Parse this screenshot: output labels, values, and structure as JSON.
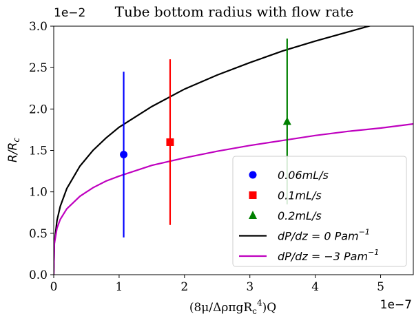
{
  "chart_data": {
    "type": "line",
    "title": "Tube bottom radius with flow rate",
    "xlabel": "(8μ/ΔρπgR_c^4)Q",
    "ylabel": "R/R_c",
    "x_exponent": "1e−7",
    "y_exponent": "1e−2",
    "x_scale": 1e-07,
    "y_scale": 0.01,
    "xlim": [
      0,
      5.5e-07
    ],
    "ylim": [
      0,
      0.03
    ],
    "x_ticks": [
      0,
      1e-07,
      2e-07,
      3e-07,
      4e-07,
      5e-07
    ],
    "x_tick_labels": [
      "0",
      "1",
      "2",
      "3",
      "4",
      "5"
    ],
    "y_ticks": [
      0,
      0.005,
      0.01,
      0.015,
      0.02,
      0.025,
      0.03
    ],
    "y_tick_labels": [
      "0.0",
      "0.5",
      "1.0",
      "1.5",
      "2.0",
      "2.5",
      "3.0"
    ],
    "grid": false,
    "legend_position": "lower-right",
    "series": [
      {
        "name": "0.06mL/s",
        "kind": "errorbar",
        "marker": "circle",
        "color": "#0000ff",
        "x": 1.07e-07,
        "y": 0.0145,
        "yerr_low": 0.0045,
        "yerr_high": 0.0245
      },
      {
        "name": "0.1mL/s",
        "kind": "errorbar",
        "marker": "square",
        "color": "#ff0000",
        "x": 1.78e-07,
        "y": 0.016,
        "yerr_low": 0.006,
        "yerr_high": 0.026
      },
      {
        "name": "0.2mL/s",
        "kind": "errorbar",
        "marker": "triangle",
        "color": "#008000",
        "x": 3.57e-07,
        "y": 0.0185,
        "yerr_low": 0.0085,
        "yerr_high": 0.0285
      },
      {
        "name": "dP/dz = 0 Pam⁻¹",
        "kind": "line",
        "color": "#000000",
        "x": [
          0,
          1e-09,
          5e-09,
          1e-08,
          2e-08,
          4e-08,
          6e-08,
          8e-08,
          1e-07,
          1.5e-07,
          2e-07,
          2.5e-07,
          3e-07,
          3.5e-07,
          4e-07,
          4.5e-07,
          5e-07,
          5.5e-07
        ],
        "y": [
          0,
          0.00383,
          0.00655,
          0.00825,
          0.0104,
          0.0131,
          0.015,
          0.0165,
          0.0178,
          0.0203,
          0.0224,
          0.0241,
          0.0256,
          0.027,
          0.0282,
          0.0293,
          0.0304,
          0.0314
        ]
      },
      {
        "name": "dP/dz = −3 Pam⁻¹",
        "kind": "line",
        "color": "#bf00bf",
        "x": [
          0,
          1e-09,
          5e-09,
          1e-08,
          2e-08,
          4e-08,
          6e-08,
          8e-08,
          1e-07,
          1.5e-07,
          2e-07,
          2.5e-07,
          3e-07,
          3.5e-07,
          4e-07,
          4.5e-07,
          5e-07,
          5.5e-07
        ],
        "y": [
          0,
          0.00376,
          0.00562,
          0.00668,
          0.00795,
          0.00946,
          0.0105,
          0.0113,
          0.0119,
          0.0132,
          0.0141,
          0.0149,
          0.0156,
          0.0162,
          0.0168,
          0.0173,
          0.0177,
          0.0182
        ]
      }
    ],
    "legend": [
      {
        "label": "0.06",
        "unit": "mL/s",
        "marker": "circle",
        "color": "#0000ff"
      },
      {
        "label": "0.1",
        "unit": "mL/s",
        "marker": "square",
        "color": "#ff0000"
      },
      {
        "label": "0.2",
        "unit": "mL/s",
        "marker": "triangle",
        "color": "#008000"
      },
      {
        "label": "dP/dz = 0 ",
        "unit": "Pam",
        "sup": "−1",
        "marker": "line",
        "color": "#000000"
      },
      {
        "label": "dP/dz = −3 ",
        "unit": "Pam",
        "sup": "−1",
        "marker": "line",
        "color": "#bf00bf"
      }
    ]
  }
}
